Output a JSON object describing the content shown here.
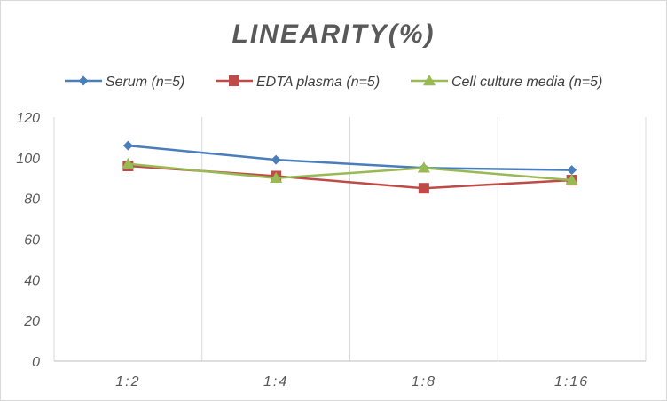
{
  "chart_data": {
    "type": "line",
    "title": "LINEARITY(%)",
    "categories": [
      "1:2",
      "1:4",
      "1:8",
      "1:16"
    ],
    "ylim": [
      0,
      120
    ],
    "yticks": [
      0,
      20,
      40,
      60,
      80,
      100,
      120
    ],
    "grid": "vertical",
    "legend_position": "top",
    "series": [
      {
        "name": "Serum (n=5)",
        "values": [
          106,
          99,
          95,
          94
        ],
        "color": "#4a7ebb",
        "marker": "diamond"
      },
      {
        "name": "EDTA plasma (n=5)",
        "values": [
          96,
          91,
          85,
          89
        ],
        "color": "#be4b48",
        "marker": "square"
      },
      {
        "name": "Cell culture media (n=5)",
        "values": [
          97,
          90,
          95,
          89
        ],
        "color": "#98b954",
        "marker": "triangle"
      }
    ]
  }
}
